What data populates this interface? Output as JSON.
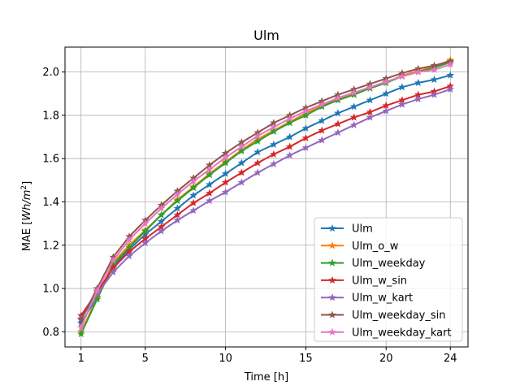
{
  "chart_data": {
    "type": "line",
    "title": "Ulm",
    "xlabel": "Time [h]",
    "ylabel_prefix": "MAE [",
    "ylabel_unit_italic": "Wh/m",
    "ylabel_sup": "2",
    "ylabel_suffix": "]",
    "xlim": [
      0.0,
      25.1
    ],
    "ylim": [
      0.73,
      2.115
    ],
    "x_ticks": [
      1,
      5,
      10,
      15,
      20,
      24
    ],
    "y_ticks": [
      0.8,
      1.0,
      1.2,
      1.4,
      1.6,
      1.8,
      2.0
    ],
    "y_tick_labels": [
      "0.8",
      "1.0",
      "1.2",
      "1.4",
      "1.6",
      "1.8",
      "2.0"
    ],
    "grid": true,
    "legend_position": "lower-right",
    "marker": "star",
    "x": [
      1,
      2,
      3,
      4,
      5,
      6,
      7,
      8,
      9,
      10,
      11,
      12,
      13,
      14,
      15,
      16,
      17,
      18,
      19,
      20,
      21,
      22,
      23,
      24
    ],
    "series": [
      {
        "name": "Ulm",
        "color": "#1f77b4",
        "values": [
          0.84,
          0.96,
          1.1,
          1.18,
          1.25,
          1.31,
          1.37,
          1.43,
          1.48,
          1.53,
          1.58,
          1.63,
          1.665,
          1.7,
          1.74,
          1.775,
          1.81,
          1.84,
          1.87,
          1.9,
          1.93,
          1.95,
          1.965,
          1.985
        ]
      },
      {
        "name": "Ulm_o_w",
        "color": "#ff7f0e",
        "values": [
          0.8,
          0.955,
          1.12,
          1.2,
          1.27,
          1.34,
          1.41,
          1.47,
          1.53,
          1.585,
          1.64,
          1.69,
          1.73,
          1.77,
          1.81,
          1.845,
          1.875,
          1.9,
          1.925,
          1.95,
          1.985,
          2.005,
          2.025,
          2.055
        ]
      },
      {
        "name": "Ulm_weekday",
        "color": "#2ca02c",
        "values": [
          0.79,
          0.95,
          1.11,
          1.19,
          1.265,
          1.34,
          1.405,
          1.465,
          1.525,
          1.58,
          1.635,
          1.68,
          1.725,
          1.765,
          1.8,
          1.84,
          1.87,
          1.895,
          1.925,
          1.95,
          1.98,
          2.0,
          2.02,
          2.045
        ]
      },
      {
        "name": "Ulm_w_sin",
        "color": "#d62728",
        "values": [
          0.875,
          0.985,
          1.095,
          1.17,
          1.23,
          1.285,
          1.34,
          1.395,
          1.44,
          1.49,
          1.535,
          1.58,
          1.62,
          1.655,
          1.695,
          1.73,
          1.76,
          1.79,
          1.815,
          1.845,
          1.87,
          1.895,
          1.91,
          1.935
        ]
      },
      {
        "name": "Ulm_w_kart",
        "color": "#9467bd",
        "values": [
          0.86,
          0.975,
          1.075,
          1.15,
          1.21,
          1.265,
          1.315,
          1.36,
          1.405,
          1.445,
          1.49,
          1.535,
          1.575,
          1.615,
          1.65,
          1.685,
          1.72,
          1.755,
          1.79,
          1.82,
          1.85,
          1.875,
          1.895,
          1.92
        ]
      },
      {
        "name": "Ulm_weekday_sin",
        "color": "#8c564b",
        "values": [
          0.855,
          1.0,
          1.145,
          1.24,
          1.315,
          1.385,
          1.45,
          1.51,
          1.57,
          1.625,
          1.675,
          1.72,
          1.765,
          1.8,
          1.835,
          1.865,
          1.895,
          1.92,
          1.945,
          1.97,
          1.995,
          2.015,
          2.03,
          2.05
        ]
      },
      {
        "name": "Ulm_weekday_kart",
        "color": "#e377c2",
        "values": [
          0.82,
          0.99,
          1.13,
          1.225,
          1.3,
          1.37,
          1.435,
          1.495,
          1.55,
          1.605,
          1.655,
          1.705,
          1.745,
          1.785,
          1.82,
          1.85,
          1.88,
          1.905,
          1.93,
          1.955,
          1.98,
          2.0,
          2.01,
          2.035
        ]
      }
    ]
  }
}
